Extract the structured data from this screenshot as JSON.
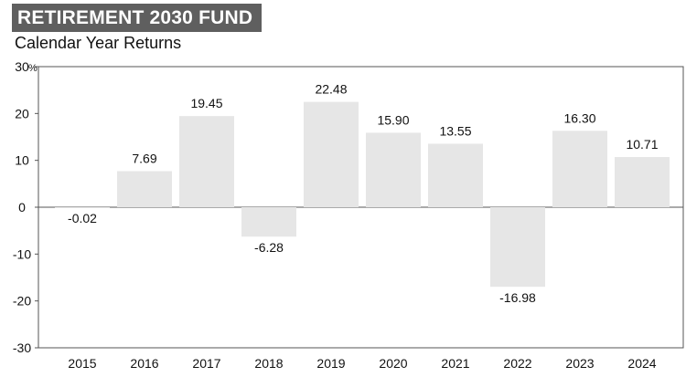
{
  "header": {
    "title": "RETIREMENT 2030 FUND",
    "subtitle": "Calendar Year Returns"
  },
  "colors": {
    "title_bg": "#5f5f5f",
    "bar": "#e6e6e6",
    "axis": "#555555"
  },
  "chart_data": {
    "type": "bar",
    "categories": [
      "2015",
      "2016",
      "2017",
      "2018",
      "2019",
      "2020",
      "2021",
      "2022",
      "2023",
      "2024"
    ],
    "values": [
      -0.02,
      7.69,
      19.45,
      -6.28,
      22.48,
      15.9,
      13.55,
      -16.98,
      16.3,
      10.71
    ],
    "value_labels": [
      "-0.02",
      "7.69",
      "19.45",
      "-6.28",
      "22.48",
      "15.90",
      "13.55",
      "-16.98",
      "16.30",
      "10.71"
    ],
    "ylim": [
      -30,
      30
    ],
    "yticks": [
      30,
      20,
      10,
      0,
      -10,
      -20,
      -30
    ],
    "ytick_labels": [
      "30",
      "20",
      "10",
      "0",
      "-10",
      "-20",
      "-30"
    ],
    "y_unit": "%",
    "grid": false,
    "legend": "none"
  }
}
